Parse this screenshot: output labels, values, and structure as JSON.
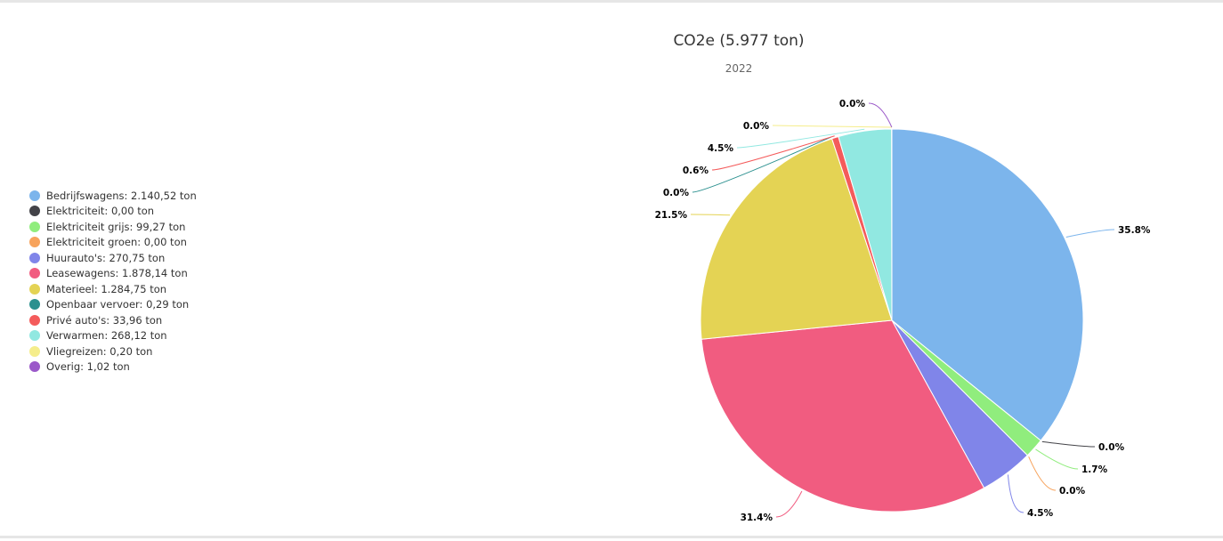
{
  "chart_data": {
    "type": "pie",
    "title": "CO2e (5.977 ton)",
    "subtitle": "2022",
    "legend_position": "left",
    "slices": [
      {
        "name": "Bedrijfswagens",
        "legend": "Bedrijfswagens: 2.140,52 ton",
        "value": 2140.52,
        "label": "35.8%",
        "color": "#7cb5ec"
      },
      {
        "name": "Elektriciteit",
        "legend": "Elektriciteit: 0,00 ton",
        "value": 0.0,
        "label": "0.0%",
        "color": "#434348"
      },
      {
        "name": "Elektriciteit grijs",
        "legend": "Elektriciteit grijs: 99,27 ton",
        "value": 99.27,
        "label": "1.7%",
        "color": "#90ed7d"
      },
      {
        "name": "Elektriciteit groen",
        "legend": "Elektriciteit groen: 0,00 ton",
        "value": 0.0,
        "label": "0.0%",
        "color": "#f7a35c"
      },
      {
        "name": "Huurauto's",
        "legend": "Huurauto's: 270,75 ton",
        "value": 270.75,
        "label": "4.5%",
        "color": "#8085e9"
      },
      {
        "name": "Leasewagens",
        "legend": "Leasewagens: 1.878,14 ton",
        "value": 1878.14,
        "label": "31.4%",
        "color": "#f15c80"
      },
      {
        "name": "Materieel",
        "legend": "Materieel: 1.284,75 ton",
        "value": 1284.75,
        "label": "21.5%",
        "color": "#e4d354"
      },
      {
        "name": "Openbaar vervoer",
        "legend": "Openbaar vervoer: 0,29 ton",
        "value": 0.29,
        "label": "0.0%",
        "color": "#2b908f"
      },
      {
        "name": "Privé auto's",
        "legend": "Privé auto's: 33,96 ton",
        "value": 33.96,
        "label": "0.6%",
        "color": "#f45b5b"
      },
      {
        "name": "Verwarmen",
        "legend": "Verwarmen: 268,12 ton",
        "value": 268.12,
        "label": "4.5%",
        "color": "#91e8e1"
      },
      {
        "name": "Vliegreizen",
        "legend": "Vliegreizen: 0,20 ton",
        "value": 0.2,
        "label": "0.0%",
        "color": "#f5ed8b"
      },
      {
        "name": "Overig",
        "legend": "Overig: 1,02 ton",
        "value": 1.02,
        "label": "0.0%",
        "color": "#9b59c9"
      }
    ]
  }
}
